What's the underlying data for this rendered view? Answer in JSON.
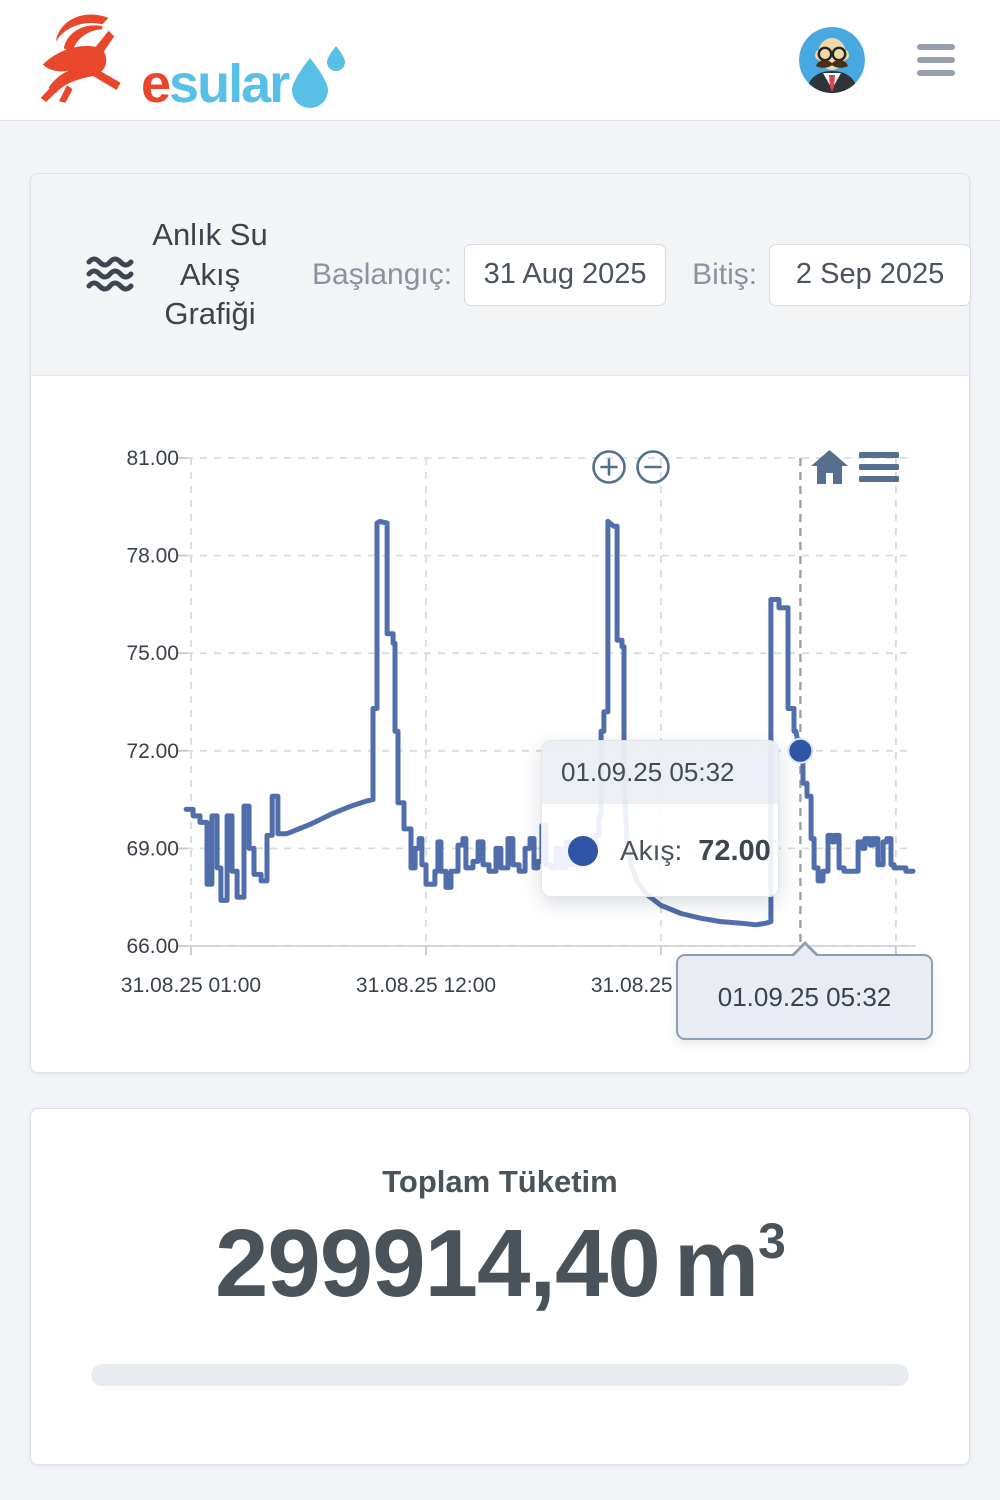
{
  "navbar": {
    "brand_prefix": "e",
    "brand_rest": "sular",
    "brand_colors": {
      "prefix": "#e8472b",
      "rest": "#58bfe6"
    },
    "icons": {
      "logo": "leaping-goat",
      "drops": "water-drops",
      "profile": "man-avatar",
      "menu": "hamburger"
    }
  },
  "filter": {
    "title": "Anlık Su Akış Grafiği",
    "title_icon": "waves",
    "start_label": "Başlangıç:",
    "start_value": "31 Aug 2025",
    "end_label": "Bitiş:",
    "end_value": "2 Sep 2025"
  },
  "chart_toolbar": {
    "zoom_in": "circle-plus",
    "zoom_out": "circle-minus",
    "reset": "home",
    "menu": "hamburger",
    "icon_color": "#54708e"
  },
  "chart_data": {
    "type": "line",
    "title": "Anlık Su Akış Grafiği",
    "x_unit": "hours since 31.08.2025 00:00",
    "xlim": [
      0.77,
      34.8
    ],
    "ylim": [
      66,
      81
    ],
    "grid": "dashed",
    "legend": "none",
    "y_ticks": [
      81,
      78,
      75,
      72,
      69,
      66
    ],
    "x_gridlines_hours": [
      1,
      12,
      23,
      34
    ],
    "x_ticks": [
      {
        "hour": 1,
        "label": "31.08.25 01:00"
      },
      {
        "hour": 12,
        "label": "31.08.25 12:00"
      },
      {
        "hour": 23,
        "label": "31.08.25 23:00"
      }
    ],
    "highlighted_point": {
      "hour": 29.53,
      "value": 72.0,
      "time": "01.09.25 05:32",
      "color": "#2e56a5"
    },
    "series": [
      {
        "name": "Akış",
        "color": "#506eab",
        "points": [
          [
            0.77,
            70.2
          ],
          [
            1.1,
            70.2
          ],
          [
            1.1,
            70.0
          ],
          [
            1.42,
            70.0
          ],
          [
            1.42,
            69.8
          ],
          [
            1.75,
            69.8
          ],
          [
            1.75,
            67.9
          ],
          [
            1.98,
            67.9
          ],
          [
            1.98,
            70.0
          ],
          [
            2.22,
            70.0
          ],
          [
            2.22,
            68.4
          ],
          [
            2.4,
            68.4
          ],
          [
            2.4,
            67.4
          ],
          [
            2.69,
            67.4
          ],
          [
            2.69,
            70.0
          ],
          [
            2.92,
            70.0
          ],
          [
            2.92,
            68.3
          ],
          [
            3.16,
            68.3
          ],
          [
            3.16,
            67.5
          ],
          [
            3.48,
            67.5
          ],
          [
            3.48,
            70.3
          ],
          [
            3.72,
            70.3
          ],
          [
            3.72,
            69.0
          ],
          [
            3.95,
            69.0
          ],
          [
            3.95,
            68.2
          ],
          [
            4.28,
            68.2
          ],
          [
            4.28,
            68.0
          ],
          [
            4.56,
            68.0
          ],
          [
            4.56,
            69.4
          ],
          [
            4.8,
            69.4
          ],
          [
            4.8,
            70.6
          ],
          [
            5.07,
            70.6
          ],
          [
            5.07,
            69.45
          ],
          [
            5.45,
            69.45
          ],
          [
            5.68,
            69.5
          ],
          [
            6.62,
            69.75
          ],
          [
            7.56,
            70.05
          ],
          [
            8.49,
            70.3
          ],
          [
            9.19,
            70.45
          ],
          [
            9.52,
            70.5
          ],
          [
            9.52,
            73.3
          ],
          [
            9.71,
            73.3
          ],
          [
            9.71,
            79.0
          ],
          [
            9.85,
            79.05
          ],
          [
            10.18,
            79.0
          ],
          [
            10.18,
            75.6
          ],
          [
            10.46,
            75.6
          ],
          [
            10.46,
            75.3
          ],
          [
            10.55,
            75.3
          ],
          [
            10.55,
            72.6
          ],
          [
            10.69,
            72.6
          ],
          [
            10.69,
            70.4
          ],
          [
            10.97,
            70.4
          ],
          [
            10.97,
            69.6
          ],
          [
            11.3,
            69.6
          ],
          [
            11.3,
            68.4
          ],
          [
            11.49,
            68.4
          ],
          [
            11.49,
            69.0
          ],
          [
            11.68,
            69.0
          ],
          [
            11.68,
            69.3
          ],
          [
            11.81,
            69.3
          ],
          [
            11.81,
            68.5
          ],
          [
            12.0,
            68.5
          ],
          [
            12.0,
            67.9
          ],
          [
            12.42,
            67.9
          ],
          [
            12.42,
            68.3
          ],
          [
            12.56,
            68.3
          ],
          [
            12.56,
            69.2
          ],
          [
            12.7,
            69.2
          ],
          [
            12.7,
            68.3
          ],
          [
            12.94,
            68.3
          ],
          [
            12.94,
            67.8
          ],
          [
            13.17,
            67.8
          ],
          [
            13.17,
            68.3
          ],
          [
            13.5,
            68.3
          ],
          [
            13.5,
            69.1
          ],
          [
            13.73,
            69.1
          ],
          [
            13.73,
            69.3
          ],
          [
            13.87,
            69.3
          ],
          [
            13.87,
            68.4
          ],
          [
            14.2,
            68.4
          ],
          [
            14.2,
            68.6
          ],
          [
            14.44,
            68.6
          ],
          [
            14.44,
            69.2
          ],
          [
            14.67,
            69.2
          ],
          [
            14.67,
            68.5
          ],
          [
            14.95,
            68.5
          ],
          [
            14.95,
            68.3
          ],
          [
            15.28,
            68.3
          ],
          [
            15.28,
            69.0
          ],
          [
            15.51,
            69.0
          ],
          [
            15.51,
            68.4
          ],
          [
            15.84,
            68.4
          ],
          [
            15.84,
            69.3
          ],
          [
            16.07,
            69.3
          ],
          [
            16.07,
            68.5
          ],
          [
            16.36,
            68.5
          ],
          [
            16.36,
            68.3
          ],
          [
            16.64,
            68.3
          ],
          [
            16.64,
            69.0
          ],
          [
            16.87,
            69.0
          ],
          [
            16.87,
            69.3
          ],
          [
            17.06,
            69.3
          ],
          [
            17.06,
            68.4
          ],
          [
            17.24,
            68.4
          ],
          [
            17.24,
            68.6
          ],
          [
            17.43,
            68.6
          ],
          [
            17.43,
            69.7
          ],
          [
            17.62,
            69.7
          ],
          [
            17.62,
            68.5
          ],
          [
            17.85,
            68.5
          ],
          [
            17.85,
            68.4
          ],
          [
            18.09,
            68.4
          ],
          [
            18.09,
            69.0
          ],
          [
            18.32,
            69.0
          ],
          [
            18.32,
            68.4
          ],
          [
            18.56,
            68.4
          ],
          [
            18.56,
            69.2
          ],
          [
            18.79,
            69.2
          ],
          [
            18.79,
            68.5
          ],
          [
            19.02,
            68.5
          ],
          [
            19.02,
            69.0
          ],
          [
            19.26,
            69.0
          ],
          [
            19.26,
            68.5
          ],
          [
            19.49,
            68.5
          ],
          [
            19.49,
            69.3
          ],
          [
            19.73,
            69.3
          ],
          [
            19.73,
            69.0
          ],
          [
            19.96,
            69.0
          ],
          [
            19.96,
            69.4
          ],
          [
            20.1,
            69.4
          ],
          [
            20.1,
            70.0
          ],
          [
            20.2,
            70.0
          ],
          [
            20.2,
            72.6
          ],
          [
            20.33,
            72.6
          ],
          [
            20.33,
            73.2
          ],
          [
            20.52,
            73.2
          ],
          [
            20.52,
            79.05
          ],
          [
            20.8,
            78.9
          ],
          [
            20.95,
            78.9
          ],
          [
            20.95,
            75.4
          ],
          [
            21.18,
            75.4
          ],
          [
            21.18,
            75.2
          ],
          [
            21.27,
            75.2
          ],
          [
            21.27,
            71.0
          ],
          [
            21.41,
            69.3
          ],
          [
            21.6,
            68.5
          ],
          [
            21.88,
            68.0
          ],
          [
            22.3,
            67.6
          ],
          [
            23.0,
            67.25
          ],
          [
            23.94,
            67.0
          ],
          [
            24.88,
            66.85
          ],
          [
            25.81,
            66.75
          ],
          [
            26.75,
            66.7
          ],
          [
            27.45,
            66.65
          ],
          [
            27.92,
            66.7
          ],
          [
            28.15,
            66.75
          ],
          [
            28.15,
            76.65
          ],
          [
            28.53,
            76.65
          ],
          [
            28.53,
            76.4
          ],
          [
            28.95,
            76.4
          ],
          [
            28.95,
            73.3
          ],
          [
            29.23,
            73.3
          ],
          [
            29.23,
            72.6
          ],
          [
            29.32,
            72.6
          ],
          [
            29.41,
            72.3
          ],
          [
            29.53,
            72.0
          ],
          [
            29.65,
            71.6
          ],
          [
            29.65,
            71.0
          ],
          [
            29.84,
            71.0
          ],
          [
            29.84,
            70.6
          ],
          [
            30.03,
            70.6
          ],
          [
            30.03,
            69.3
          ],
          [
            30.17,
            69.3
          ],
          [
            30.17,
            68.4
          ],
          [
            30.36,
            68.4
          ],
          [
            30.36,
            68.0
          ],
          [
            30.59,
            68.0
          ],
          [
            30.59,
            68.3
          ],
          [
            30.82,
            68.3
          ],
          [
            30.82,
            69.4
          ],
          [
            31.01,
            69.4
          ],
          [
            31.01,
            69.2
          ],
          [
            31.15,
            69.2
          ],
          [
            31.15,
            69.4
          ],
          [
            31.34,
            69.4
          ],
          [
            31.34,
            68.4
          ],
          [
            31.57,
            68.4
          ],
          [
            31.57,
            68.3
          ],
          [
            32.23,
            68.3
          ],
          [
            32.23,
            69.2
          ],
          [
            32.41,
            69.2
          ],
          [
            32.41,
            69.0
          ],
          [
            32.55,
            69.0
          ],
          [
            32.55,
            69.3
          ],
          [
            32.79,
            69.3
          ],
          [
            32.79,
            69.1
          ],
          [
            32.93,
            69.1
          ],
          [
            32.93,
            69.3
          ],
          [
            33.16,
            69.3
          ],
          [
            33.16,
            68.5
          ],
          [
            33.4,
            68.5
          ],
          [
            33.4,
            69.2
          ],
          [
            33.58,
            69.2
          ],
          [
            33.58,
            69.3
          ],
          [
            33.77,
            69.3
          ],
          [
            33.77,
            68.5
          ],
          [
            33.91,
            68.5
          ],
          [
            33.91,
            68.4
          ],
          [
            34.47,
            68.4
          ],
          [
            34.47,
            68.3
          ],
          [
            34.8,
            68.3
          ]
        ]
      }
    ]
  },
  "tooltip": {
    "time": "01.09.25 05:32",
    "series_label": "Akış:",
    "value": "72.00"
  },
  "axis_tooltip": {
    "time": "01.09.25 05:32"
  },
  "summary": {
    "title": "Toplam Tüketim",
    "value": "299914,40",
    "unit": "m",
    "unit_exp": "3"
  }
}
